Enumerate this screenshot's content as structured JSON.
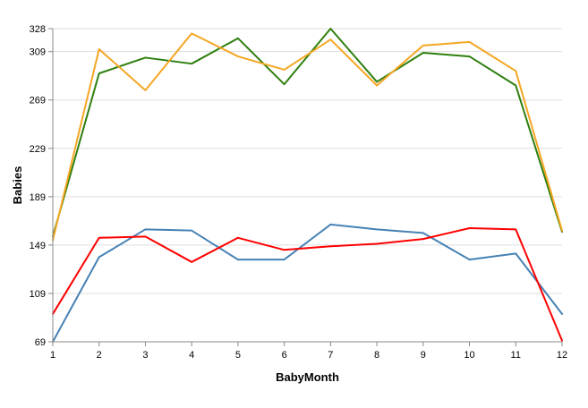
{
  "chart_data": {
    "type": "line",
    "title": "",
    "xlabel": "BabyMonth",
    "ylabel": "Babies",
    "x": [
      1,
      2,
      3,
      4,
      5,
      6,
      7,
      8,
      9,
      10,
      11,
      12
    ],
    "xlim": [
      1,
      12
    ],
    "ylim": [
      69,
      328
    ],
    "yticks": [
      69,
      109,
      149,
      189,
      229,
      269,
      309,
      328
    ],
    "grid": true,
    "legend": "none",
    "series": [
      {
        "color": "#2f7f0f",
        "values": [
          156,
          291,
          304,
          299,
          320,
          282,
          328,
          284,
          308,
          305,
          281,
          160
        ]
      },
      {
        "color": "#f5a623",
        "values": [
          153,
          311,
          277,
          324,
          305,
          294,
          319,
          281,
          314,
          317,
          293,
          161
        ]
      },
      {
        "color": "#4682b4",
        "values": [
          69,
          139,
          162,
          161,
          137,
          137,
          166,
          162,
          159,
          137,
          142,
          92
        ]
      },
      {
        "color": "#ff0000",
        "values": [
          92,
          155,
          156,
          135,
          155,
          145,
          148,
          150,
          154,
          163,
          162,
          70
        ]
      }
    ]
  }
}
